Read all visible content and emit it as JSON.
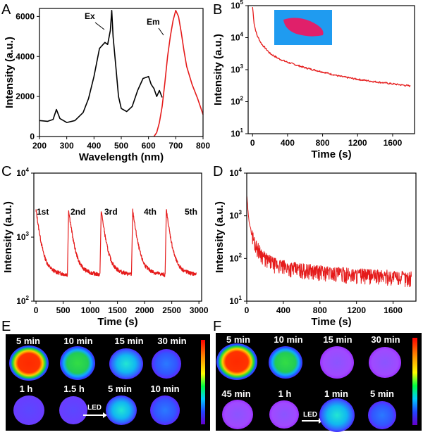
{
  "chart_data": [
    {
      "panel": "A",
      "type": "line",
      "xlabel": "Wavelength (nm)",
      "ylabel": "Intensity (a.u.)",
      "xlim": [
        200,
        800
      ],
      "ylim": [
        0,
        6400
      ],
      "xticks": [
        200,
        300,
        400,
        500,
        600,
        700,
        800
      ],
      "yticks": [
        0,
        2000,
        4000,
        6000
      ],
      "annotations": [
        "Ex",
        "Em"
      ],
      "series": [
        {
          "color": "#000000",
          "x": [
            200,
            230,
            250,
            262,
            275,
            300,
            330,
            360,
            380,
            400,
            420,
            440,
            450,
            460,
            465,
            470,
            480,
            490,
            500,
            520,
            540,
            560,
            580,
            600,
            610,
            620,
            630,
            640,
            650
          ],
          "y": [
            800,
            760,
            850,
            1350,
            900,
            700,
            800,
            1200,
            1900,
            3000,
            4400,
            4700,
            4600,
            5300,
            6300,
            5000,
            3500,
            2000,
            1400,
            1250,
            1500,
            2300,
            2900,
            3000,
            2600,
            2400,
            2000,
            2300,
            1950
          ]
        },
        {
          "color": "#e51b1b",
          "x": [
            620,
            630,
            640,
            650,
            660,
            670,
            680,
            690,
            700,
            710,
            720,
            730,
            740,
            760,
            780,
            800
          ],
          "y": [
            0,
            200,
            700,
            1500,
            2700,
            4000,
            5000,
            5800,
            6300,
            6000,
            5200,
            4300,
            3500,
            2600,
            1900,
            1100
          ]
        }
      ]
    },
    {
      "panel": "B",
      "type": "line",
      "scale": "log",
      "xlabel": "Time (s)",
      "ylabel": "Intensity (a.u.)",
      "xlim": [
        -50,
        1850
      ],
      "ylim": [
        10,
        100000
      ],
      "xticks": [
        0,
        400,
        800,
        1200,
        1600
      ],
      "yticks": [
        "10^1",
        "10^2",
        "10^3",
        "10^4",
        "10^5"
      ],
      "series": [
        {
          "color": "#e51b1b",
          "x": [
            0,
            20,
            50,
            100,
            200,
            300,
            400,
            600,
            800,
            1000,
            1200,
            1400,
            1600,
            1800
          ],
          "y": [
            90000,
            25000,
            12000,
            6500,
            3200,
            2200,
            1700,
            1150,
            850,
            620,
            500,
            420,
            360,
            310
          ]
        }
      ]
    },
    {
      "panel": "C",
      "type": "line",
      "scale": "log",
      "xlabel": "Time (s)",
      "ylabel": "Intensity (a.u.)",
      "xlim": [
        -40,
        3050
      ],
      "ylim": [
        100,
        10000
      ],
      "xticks": [
        0,
        500,
        1000,
        1500,
        2000,
        2500,
        3000
      ],
      "yticks": [
        "10^2",
        "10^3",
        "10^4"
      ],
      "annotations": [
        "1st",
        "2nd",
        "3rd",
        "4th",
        "5th"
      ],
      "cycles": [
        {
          "start": 0,
          "end": 580
        },
        {
          "start": 600,
          "end": 1180
        },
        {
          "start": 1200,
          "end": 1760
        },
        {
          "start": 1780,
          "end": 2380
        },
        {
          "start": 2400,
          "end": 2950
        }
      ],
      "series": [
        {
          "color": "#e51b1b",
          "peak": 2500,
          "end_value": 240
        }
      ]
    },
    {
      "panel": "D",
      "type": "line",
      "scale": "log",
      "xlabel": "Time (s)",
      "ylabel": "Intensity (a.u.)",
      "xlim": [
        0,
        1850
      ],
      "ylim": [
        10,
        10000
      ],
      "xticks": [
        0,
        400,
        800,
        1200,
        1600
      ],
      "yticks": [
        "10^1",
        "10^2",
        "10^3",
        "10^4"
      ],
      "series": [
        {
          "color": "#e51b1b",
          "x": [
            0,
            20,
            50,
            100,
            200,
            300,
            400,
            600,
            800,
            1000,
            1200,
            1400,
            1600,
            1800
          ],
          "y": [
            3000,
            900,
            400,
            200,
            100,
            75,
            65,
            55,
            50,
            45,
            42,
            40,
            38,
            35
          ]
        }
      ]
    }
  ],
  "panels": {
    "A": "A",
    "B": "B",
    "C": "C",
    "D": "D",
    "E": "E",
    "F": "F"
  },
  "image_e": {
    "labels_top": [
      "5 min",
      "10 min",
      "15 min",
      "30 min"
    ],
    "labels_bottom": [
      "1 h",
      "1.5 h",
      "5 min",
      "10 min"
    ],
    "led": "LED"
  },
  "image_f": {
    "labels_top": [
      "5 min",
      "10 min",
      "15 min",
      "30 min"
    ],
    "labels_bottom": [
      "45 min",
      "1 h",
      "1 min",
      "5 min"
    ],
    "led": "LED"
  }
}
